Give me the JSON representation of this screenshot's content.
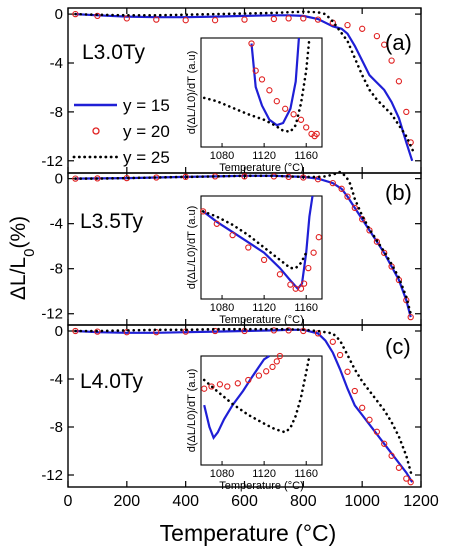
{
  "figure": {
    "xlabel": "Temperature (°C)",
    "ylabel_html": "ΔL/L<tspan baseline-shift=\"sub\" font-size=\"15\">0</tspan>(%)",
    "ylabel": "ΔL/L0(%)",
    "xlim": [
      0,
      1200
    ],
    "x_ticks": [
      "0",
      "200",
      "400",
      "600",
      "800",
      "1000",
      "1200"
    ],
    "legend": [
      "y = 15",
      "y = 20",
      "y = 25"
    ]
  },
  "colors": {
    "y15": "#1f1fd6",
    "y20": "#e02020",
    "y25": "#000000"
  },
  "chart_data": [
    {
      "type": "line",
      "panel": "(a)",
      "sample": "L3.0Ty",
      "ylabel": "ΔL/L0(%)",
      "ylim": [
        -13,
        0.5
      ],
      "y_ticks": [
        "0",
        "-4",
        "-8",
        "-12"
      ],
      "series": [
        {
          "name": "y = 15",
          "x": [
            25,
            100,
            200,
            300,
            400,
            500,
            600,
            700,
            750,
            800,
            850,
            900,
            930,
            950,
            975,
            1000,
            1025,
            1050,
            1075,
            1100,
            1125,
            1150,
            1170
          ],
          "y": [
            0,
            -0.1,
            -0.2,
            -0.25,
            -0.25,
            -0.2,
            -0.15,
            -0.1,
            -0.1,
            -0.15,
            -0.4,
            -1.0,
            -1.2,
            -1.6,
            -2.6,
            -3.8,
            -5.0,
            -5.6,
            -6.2,
            -7.2,
            -8.5,
            -10.5,
            -12.0
          ]
        },
        {
          "name": "y = 20",
          "x": [
            25,
            100,
            200,
            300,
            400,
            500,
            600,
            700,
            750,
            800,
            850,
            900,
            950,
            1000,
            1050,
            1075,
            1100,
            1125,
            1150,
            1165
          ],
          "y": [
            0,
            -0.15,
            -0.35,
            -0.45,
            -0.5,
            -0.5,
            -0.45,
            -0.4,
            -0.35,
            -0.35,
            -0.45,
            -0.7,
            -0.9,
            -1.2,
            -1.8,
            -2.5,
            -3.8,
            -5.5,
            -8.0,
            -10.5
          ]
        },
        {
          "name": "y = 25",
          "x": [
            25,
            100,
            200,
            300,
            400,
            500,
            600,
            700,
            750,
            800,
            850,
            875,
            900,
            925,
            950,
            975,
            1000,
            1025,
            1050,
            1100,
            1150,
            1175
          ],
          "y": [
            0,
            -0.05,
            -0.1,
            -0.1,
            -0.05,
            0.0,
            0.05,
            0.1,
            0.15,
            0.2,
            0.15,
            0.0,
            -0.6,
            -1.4,
            -2.2,
            -3.6,
            -5.0,
            -6.2,
            -7.0,
            -8.2,
            -10.0,
            -11.3
          ]
        }
      ],
      "inset": {
        "ylabel": "d(ΔL/L0)/dT (a.u)",
        "xlabel": "Temperature (°C)",
        "xlim": [
          1060,
          1175
        ],
        "x_ticks": [
          "1080",
          "1120",
          "1160"
        ],
        "series": [
          {
            "name": "y = 15",
            "x": [
              1108,
              1112,
              1118,
              1125,
              1132,
              1138,
              1145,
              1150,
              1153
            ],
            "y": [
              0.95,
              0.55,
              0.38,
              0.25,
              0.2,
              0.22,
              0.35,
              0.6,
              1.0
            ]
          },
          {
            "name": "y = 20",
            "x": [
              1108,
              1112,
              1118,
              1125,
              1132,
              1140,
              1148,
              1155,
              1160,
              1165,
              1168,
              1170
            ],
            "y": [
              0.95,
              0.7,
              0.62,
              0.52,
              0.42,
              0.35,
              0.3,
              0.25,
              0.18,
              0.12,
              0.1,
              0.12
            ]
          },
          {
            "name": "y = 25",
            "x": [
              1063,
              1075,
              1090,
              1105,
              1120,
              1130,
              1138,
              1145,
              1150,
              1155,
              1160,
              1163
            ],
            "y": [
              0.45,
              0.42,
              0.36,
              0.3,
              0.25,
              0.2,
              0.15,
              0.14,
              0.2,
              0.4,
              0.7,
              1.0
            ]
          }
        ]
      }
    },
    {
      "type": "line",
      "panel": "(b)",
      "sample": "L3.5Ty",
      "ylabel": "ΔL/L0(%)",
      "ylim": [
        -13,
        0.5
      ],
      "y_ticks": [
        "0",
        "-4",
        "-8",
        "-12"
      ],
      "series": [
        {
          "name": "y = 15",
          "x": [
            25,
            100,
            200,
            300,
            400,
            500,
            600,
            700,
            750,
            800,
            850,
            900,
            930,
            950,
            975,
            1000,
            1025,
            1050,
            1075,
            1100,
            1125,
            1150,
            1165
          ],
          "y": [
            0,
            0.02,
            0.05,
            0.1,
            0.15,
            0.2,
            0.25,
            0.25,
            0.2,
            0.15,
            0.0,
            -0.4,
            -0.9,
            -1.6,
            -2.6,
            -3.6,
            -4.6,
            -5.6,
            -6.6,
            -7.8,
            -9.0,
            -10.8,
            -12.3
          ]
        },
        {
          "name": "y = 20",
          "x": [
            25,
            100,
            200,
            300,
            400,
            500,
            600,
            700,
            750,
            800,
            850,
            900,
            930,
            950,
            975,
            1000,
            1025,
            1050,
            1075,
            1100,
            1125,
            1150,
            1165
          ],
          "y": [
            0,
            0.02,
            0.05,
            0.1,
            0.15,
            0.2,
            0.2,
            0.2,
            0.15,
            0.1,
            -0.05,
            -0.4,
            -0.9,
            -1.6,
            -2.6,
            -3.6,
            -4.6,
            -5.6,
            -6.6,
            -7.8,
            -9.0,
            -10.8,
            -12.3
          ]
        },
        {
          "name": "y = 25",
          "x": [
            25,
            100,
            200,
            300,
            400,
            500,
            600,
            700,
            750,
            800,
            850,
            875,
            900,
            925,
            945,
            960,
            975,
            1000,
            1025,
            1050,
            1075,
            1100,
            1125,
            1150,
            1165
          ],
          "y": [
            0,
            0.0,
            0.05,
            0.1,
            0.15,
            0.2,
            0.25,
            0.25,
            0.2,
            0.15,
            0.15,
            0.2,
            0.35,
            0.6,
            0.2,
            -0.5,
            -1.8,
            -3.3,
            -4.5,
            -5.5,
            -6.5,
            -7.6,
            -8.8,
            -10.5,
            -12.0
          ]
        }
      ],
      "inset": {
        "ylabel": "d(ΔL/L0)/dT (a.u)",
        "xlabel": "Temperature (°C)",
        "xlim": [
          1060,
          1175
        ],
        "x_ticks": [
          "1080",
          "1120",
          "1160"
        ],
        "series": [
          {
            "name": "y = 15",
            "x": [
              1062,
              1075,
              1090,
              1105,
              1120,
              1135,
              1145,
              1152,
              1156,
              1160,
              1163,
              1166
            ],
            "y": [
              0.85,
              0.75,
              0.65,
              0.55,
              0.45,
              0.3,
              0.18,
              0.1,
              0.15,
              0.45,
              0.8,
              1.0
            ]
          },
          {
            "name": "y = 20",
            "x": [
              1062,
              1075,
              1090,
              1105,
              1120,
              1135,
              1145,
              1150,
              1155,
              1158,
              1162,
              1167,
              1172
            ],
            "y": [
              0.85,
              0.73,
              0.62,
              0.5,
              0.38,
              0.24,
              0.14,
              0.1,
              0.1,
              0.15,
              0.3,
              0.45,
              0.6
            ]
          },
          {
            "name": "y = 25",
            "x": [
              1062,
              1075,
              1090,
              1105,
              1120,
              1135,
              1145,
              1150,
              1155,
              1160
            ],
            "y": [
              0.85,
              0.8,
              0.72,
              0.62,
              0.5,
              0.38,
              0.3,
              0.3,
              0.35,
              0.45
            ]
          }
        ]
      }
    },
    {
      "type": "line",
      "panel": "(c)",
      "sample": "L4.0Ty",
      "ylabel": "ΔL/L0(%)",
      "ylim": [
        -13,
        0.5
      ],
      "y_ticks": [
        "0",
        "-4",
        "-8",
        "-12"
      ],
      "series": [
        {
          "name": "y = 15",
          "x": [
            25,
            100,
            200,
            300,
            400,
            500,
            600,
            700,
            750,
            800,
            850,
            875,
            900,
            925,
            950,
            975,
            1000,
            1025,
            1050,
            1075,
            1100,
            1125,
            1150,
            1170
          ],
          "y": [
            0,
            -0.1,
            -0.15,
            -0.15,
            -0.1,
            -0.05,
            0.0,
            0.05,
            0.1,
            0.1,
            -0.2,
            -0.8,
            -1.8,
            -3.2,
            -4.8,
            -6.2,
            -7.0,
            -7.8,
            -8.6,
            -9.4,
            -10.2,
            -11.0,
            -11.8,
            -12.6
          ]
        },
        {
          "name": "y = 20",
          "x": [
            25,
            100,
            200,
            300,
            400,
            500,
            600,
            700,
            750,
            800,
            850,
            900,
            925,
            950,
            975,
            1000,
            1025,
            1050,
            1075,
            1100,
            1125,
            1150,
            1165
          ],
          "y": [
            0,
            -0.05,
            -0.1,
            -0.1,
            -0.05,
            0.0,
            0.0,
            0.05,
            0.05,
            0.0,
            -0.2,
            -0.9,
            -2.0,
            -3.4,
            -5.0,
            -6.4,
            -7.4,
            -8.4,
            -9.4,
            -10.4,
            -11.4,
            -12.3,
            -12.6
          ]
        },
        {
          "name": "y = 25",
          "x": [
            25,
            100,
            200,
            300,
            400,
            500,
            600,
            700,
            750,
            800,
            850,
            900,
            925,
            950,
            975,
            1000,
            1025,
            1050,
            1075,
            1100,
            1125,
            1150,
            1170
          ],
          "y": [
            0,
            0.0,
            0.05,
            0.1,
            0.1,
            0.15,
            0.15,
            0.15,
            0.15,
            0.1,
            0.0,
            -0.2,
            -0.8,
            -2.0,
            -3.2,
            -4.2,
            -5.0,
            -5.8,
            -6.6,
            -7.6,
            -8.8,
            -10.4,
            -12.2
          ]
        }
      ],
      "inset": {
        "ylabel": "d(ΔL/L0)/dT (a.u)",
        "xlabel": "Temperature (°C)",
        "xlim": [
          1060,
          1175
        ],
        "x_ticks": [
          "1080",
          "1120",
          "1160"
        ],
        "series": [
          {
            "name": "y = 15",
            "x": [
              1063,
              1068,
              1072,
              1076,
              1082,
              1090,
              1100,
              1108,
              1115,
              1120,
              1125
            ],
            "y": [
              0.55,
              0.35,
              0.25,
              0.3,
              0.42,
              0.55,
              0.68,
              0.8,
              0.9,
              0.97,
              1.0
            ]
          },
          {
            "name": "y = 20",
            "x": [
              1063,
              1070,
              1078,
              1085,
              1095,
              1105,
              1115,
              1122,
              1128,
              1132,
              1135
            ],
            "y": [
              0.7,
              0.72,
              0.74,
              0.72,
              0.75,
              0.78,
              0.82,
              0.86,
              0.9,
              0.95,
              1.0
            ]
          },
          {
            "name": "y = 25",
            "x": [
              1063,
              1075,
              1090,
              1105,
              1120,
              1130,
              1140,
              1145,
              1150,
              1155,
              1160,
              1163
            ],
            "y": [
              0.78,
              0.68,
              0.56,
              0.46,
              0.38,
              0.33,
              0.3,
              0.34,
              0.45,
              0.62,
              0.85,
              1.0
            ]
          }
        ]
      }
    }
  ]
}
